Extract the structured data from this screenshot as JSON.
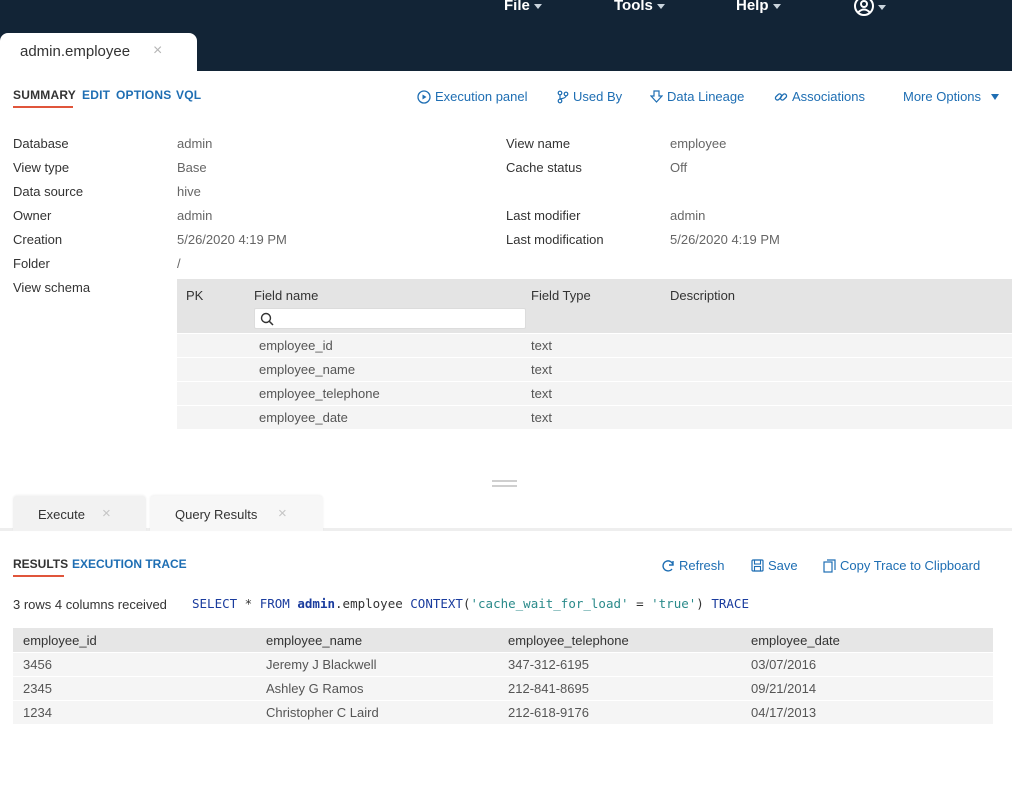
{
  "menu": {
    "file": "File",
    "tools": "Tools",
    "help": "Help"
  },
  "doc_tab": {
    "label": "admin.employee",
    "close": "×"
  },
  "subtabs": [
    "SUMMARY",
    "EDIT",
    "OPTIONS",
    "VQL"
  ],
  "actions": {
    "execution_panel": "Execution panel",
    "used_by": "Used By",
    "data_lineage": "Data Lineage",
    "associations": "Associations",
    "more_options": "More Options"
  },
  "props": {
    "database_label": "Database",
    "database_value": "admin",
    "view_type_label": "View type",
    "view_type_value": "Base",
    "data_source_label": "Data source",
    "data_source_value": "hive",
    "owner_label": "Owner",
    "owner_value": "admin",
    "creation_label": "Creation",
    "creation_value": "5/26/2020 4:19 PM",
    "folder_label": "Folder",
    "folder_value": "/",
    "view_schema_label": "View schema",
    "view_name_label": "View name",
    "view_name_value": "employee",
    "cache_status_label": "Cache status",
    "cache_status_value": "Off",
    "last_modifier_label": "Last modifier",
    "last_modifier_value": "admin",
    "last_modification_label": "Last modification",
    "last_modification_value": "5/26/2020 4:19 PM"
  },
  "schema": {
    "headers": {
      "pk": "PK",
      "field_name": "Field name",
      "field_type": "Field Type",
      "description": "Description"
    },
    "search_placeholder": "",
    "rows": [
      {
        "name": "employee_id",
        "type": "text"
      },
      {
        "name": "employee_name",
        "type": "text"
      },
      {
        "name": "employee_telephone",
        "type": "text"
      },
      {
        "name": "employee_date",
        "type": "text"
      }
    ]
  },
  "panel_tabs": {
    "execute": "Execute",
    "query_results": "Query Results",
    "close": "×"
  },
  "result_tabs": {
    "results": "RESULTS",
    "execution_trace": "EXECUTION TRACE"
  },
  "result_actions": {
    "refresh": "Refresh",
    "save": "Save",
    "copy_trace": "Copy Trace to Clipboard"
  },
  "rows_info": "3 rows 4 columns received",
  "query": {
    "select": "SELECT",
    "star": " * ",
    "from": "FROM",
    "schema": "admin",
    "table": ".employee ",
    "context": "CONTEXT",
    "open": "(",
    "key": "'cache_wait_for_load'",
    "eq": " = ",
    "val": "'true'",
    "close": ") ",
    "trace": "TRACE"
  },
  "results": {
    "columns": [
      "employee_id",
      "employee_name",
      "employee_telephone",
      "employee_date"
    ],
    "rows": [
      [
        "3456",
        "Jeremy J Blackwell",
        "347-312-6195",
        "03/07/2016"
      ],
      [
        "2345",
        "Ashley G Ramos",
        "212-841-8695",
        "09/21/2014"
      ],
      [
        "1234",
        "Christopher C Laird",
        "212-618-9176",
        "04/17/2013"
      ]
    ]
  }
}
